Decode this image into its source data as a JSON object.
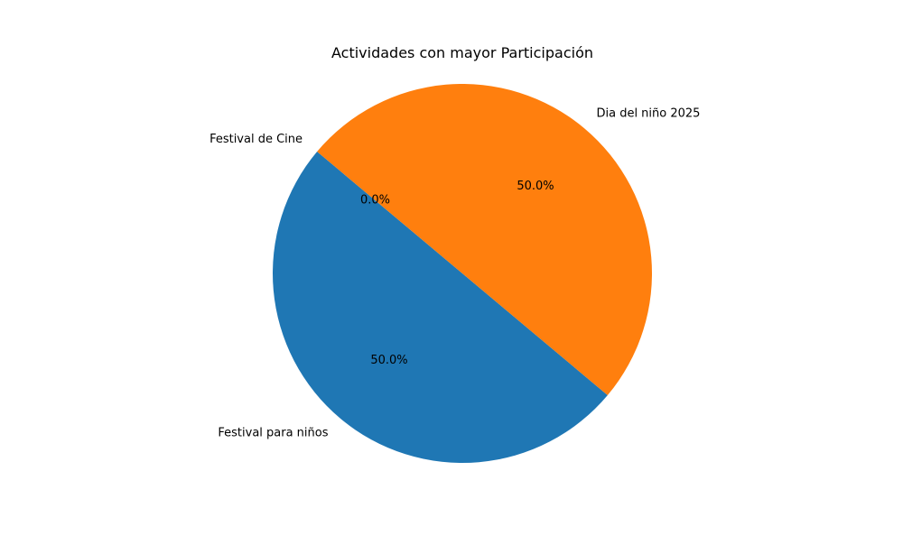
{
  "chart_data": {
    "type": "pie",
    "title": "Actividades con mayor Participación",
    "categories": [
      "Festival para niños",
      "Dia del niño 2025",
      "Festival de Cine"
    ],
    "values": [
      1,
      1,
      0
    ],
    "percent_labels": [
      "50.0%",
      "50.0%",
      "0.0%"
    ],
    "colors": [
      "#1f77b4",
      "#ff7f0e",
      "#2ca02c"
    ],
    "start_angle_deg": 140,
    "legend": "none"
  }
}
